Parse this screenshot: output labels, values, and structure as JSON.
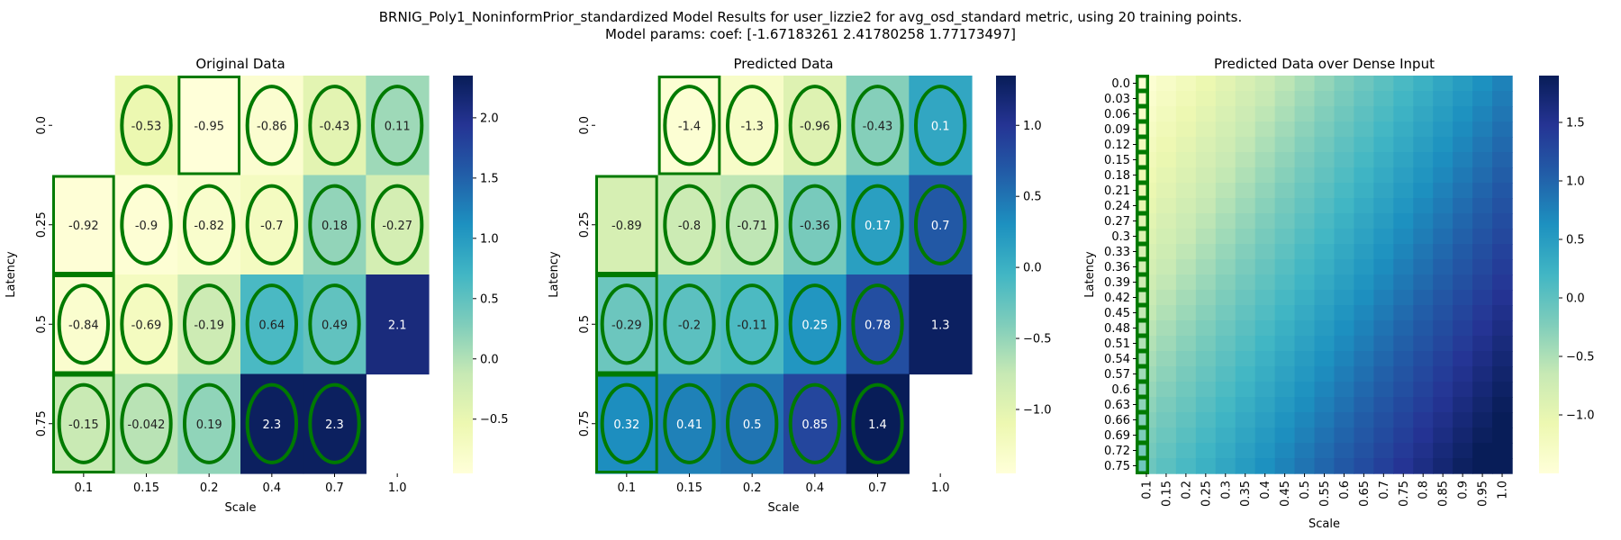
{
  "suptitle": [
    "BRNIG_Poly1_NoninformPrior_standardized Model Results for user_lizzie2 for avg_osd_standard metric, using 20 training points.",
    "Model params: coef: [-1.67183261  2.41780258  1.77173497]"
  ],
  "colormap": {
    "name": "YlGnBu",
    "stops": [
      "#ffffd9",
      "#edf8b1",
      "#c7e9b4",
      "#7fcdbb",
      "#41b6c4",
      "#1d91c0",
      "#225ea8",
      "#253494",
      "#081d58"
    ]
  },
  "marker_color": "#007a00",
  "chart_data": [
    {
      "type": "heatmap",
      "title": "Original Data",
      "xlabel": "Scale",
      "ylabel": "Latency",
      "x": [
        "0.1",
        "0.15",
        "0.2",
        "0.4",
        "0.7",
        "1.0"
      ],
      "y": [
        "0.0",
        "0.25",
        "0.5",
        "0.75"
      ],
      "values": [
        [
          null,
          -0.53,
          -0.95,
          -0.86,
          -0.43,
          0.11
        ],
        [
          -0.92,
          -0.9,
          -0.82,
          -0.7,
          0.18,
          -0.27
        ],
        [
          -0.84,
          -0.69,
          -0.19,
          0.64,
          0.49,
          2.1
        ],
        [
          -0.15,
          -0.042,
          0.19,
          2.3,
          2.3,
          null
        ]
      ],
      "labels": [
        [
          "",
          "-0.53",
          "-0.95",
          "-0.86",
          "-0.43",
          "0.11"
        ],
        [
          "-0.92",
          "-0.9",
          "-0.82",
          "-0.7",
          "0.18",
          "-0.27"
        ],
        [
          "-0.84",
          "-0.69",
          "-0.19",
          "0.64",
          "0.49",
          "2.1"
        ],
        [
          "-0.15",
          "-0.042",
          "0.19",
          "2.3",
          "2.3",
          ""
        ]
      ],
      "vmin": -0.95,
      "vmax": 2.35,
      "colorbar_ticks": [
        -0.5,
        0.0,
        0.5,
        1.0,
        1.5,
        2.0
      ],
      "colorbar_tick_labels": [
        "−0.5",
        "0.0",
        "0.5",
        "1.0",
        "1.5",
        "2.0"
      ],
      "ellipses": [
        [
          0,
          1
        ],
        [
          0,
          3
        ],
        [
          0,
          4
        ],
        [
          0,
          5
        ],
        [
          1,
          1
        ],
        [
          1,
          2
        ],
        [
          1,
          3
        ],
        [
          1,
          4
        ],
        [
          1,
          5
        ],
        [
          2,
          0
        ],
        [
          2,
          1
        ],
        [
          2,
          2
        ],
        [
          2,
          3
        ],
        [
          2,
          4
        ],
        [
          3,
          0
        ],
        [
          3,
          1
        ],
        [
          3,
          2
        ],
        [
          3,
          3
        ],
        [
          3,
          4
        ]
      ],
      "boxes": [
        [
          0,
          2
        ],
        [
          1,
          0
        ],
        [
          2,
          0
        ],
        [
          3,
          0
        ]
      ]
    },
    {
      "type": "heatmap",
      "title": "Predicted Data",
      "xlabel": "Scale",
      "ylabel": "Latency",
      "x": [
        "0.1",
        "0.15",
        "0.2",
        "0.4",
        "0.7",
        "1.0"
      ],
      "y": [
        "0.0",
        "0.25",
        "0.5",
        "0.75"
      ],
      "values": [
        [
          null,
          -1.4,
          -1.3,
          -0.96,
          -0.43,
          0.1
        ],
        [
          -0.89,
          -0.8,
          -0.71,
          -0.36,
          0.17,
          0.7
        ],
        [
          -0.29,
          -0.2,
          -0.11,
          0.25,
          0.78,
          1.3
        ],
        [
          0.32,
          0.41,
          0.5,
          0.85,
          1.4,
          null
        ]
      ],
      "labels": [
        [
          "",
          "-1.4",
          "-1.3",
          "-0.96",
          "-0.43",
          "0.1"
        ],
        [
          "-0.89",
          "-0.8",
          "-0.71",
          "-0.36",
          "0.17",
          "0.7"
        ],
        [
          "-0.29",
          "-0.2",
          "-0.11",
          "0.25",
          "0.78",
          "1.3"
        ],
        [
          "0.32",
          "0.41",
          "0.5",
          "0.85",
          "1.4",
          ""
        ]
      ],
      "vmin": -1.45,
      "vmax": 1.35,
      "colorbar_ticks": [
        -1.0,
        -0.5,
        0.0,
        0.5,
        1.0
      ],
      "colorbar_tick_labels": [
        "−1.0",
        "−0.5",
        "0.0",
        "0.5",
        "1.0"
      ],
      "ellipses": [
        [
          0,
          1
        ],
        [
          0,
          2
        ],
        [
          0,
          3
        ],
        [
          0,
          4
        ],
        [
          0,
          5
        ],
        [
          1,
          1
        ],
        [
          1,
          2
        ],
        [
          1,
          3
        ],
        [
          1,
          4
        ],
        [
          1,
          5
        ],
        [
          2,
          0
        ],
        [
          2,
          1
        ],
        [
          2,
          2
        ],
        [
          2,
          3
        ],
        [
          2,
          4
        ],
        [
          3,
          0
        ],
        [
          3,
          1
        ],
        [
          3,
          2
        ],
        [
          3,
          3
        ],
        [
          3,
          4
        ]
      ],
      "boxes": [
        [
          0,
          1
        ],
        [
          1,
          0
        ],
        [
          2,
          0
        ],
        [
          3,
          0
        ]
      ]
    },
    {
      "type": "heatmap",
      "title": "Predicted Data over Dense Input",
      "xlabel": "Scale",
      "ylabel": "Latency",
      "x": [
        "0.1",
        "0.15",
        "0.2",
        "0.25",
        "0.3",
        "0.35",
        "0.4",
        "0.45",
        "0.5",
        "0.55",
        "0.6",
        "0.65",
        "0.7",
        "0.75",
        "0.8",
        "0.85",
        "0.9",
        "0.95",
        "1.0"
      ],
      "y": [
        "0.0",
        "0.03",
        "0.06",
        "0.09",
        "0.12",
        "0.15",
        "0.18",
        "0.21",
        "0.24",
        "0.27",
        "0.3",
        "0.33",
        "0.36",
        "0.39",
        "0.42",
        "0.45",
        "0.48",
        "0.51",
        "0.54",
        "0.57",
        "0.6",
        "0.63",
        "0.66",
        "0.69",
        "0.72",
        "0.75"
      ],
      "model": {
        "intercept": -1.67183261,
        "coef_scale": 2.41780258,
        "coef_latency": 1.77173497
      },
      "vmin": -1.5,
      "vmax": 1.9,
      "colorbar_ticks": [
        -1.0,
        -0.5,
        0.0,
        0.5,
        1.0,
        1.5
      ],
      "colorbar_tick_labels": [
        "−1.0",
        "−0.5",
        "0.0",
        "0.5",
        "1.0",
        "1.5"
      ],
      "left_marker_column": true
    }
  ]
}
